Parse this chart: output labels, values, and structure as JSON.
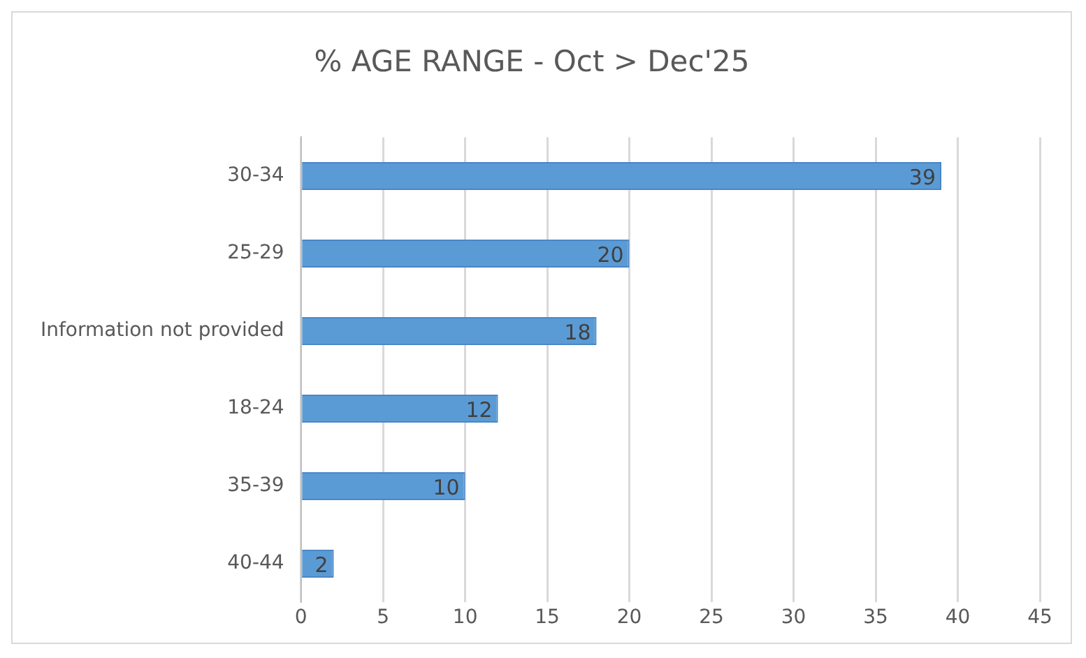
{
  "chart_data": {
    "type": "bar",
    "title": "% AGE RANGE - Oct > Dec'25",
    "orientation": "horizontal",
    "categories": [
      "30-34",
      "25-29",
      "Information not provided",
      "18-24",
      "35-39",
      "40-44"
    ],
    "values": [
      39,
      20,
      18,
      12,
      10,
      2
    ],
    "color": "#5b9bd5",
    "xlim": [
      0,
      45
    ],
    "xticks": [
      0,
      5,
      10,
      15,
      20,
      25,
      30,
      35,
      40,
      45
    ],
    "grid": "x",
    "data_labels": true,
    "legend": false
  }
}
